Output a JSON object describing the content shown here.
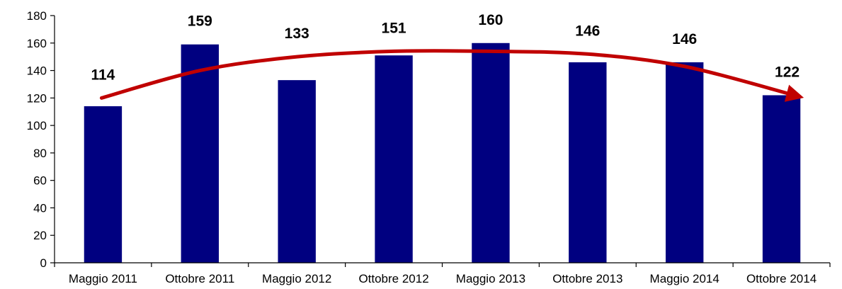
{
  "chart_data": {
    "type": "bar",
    "categories": [
      "Maggio 2011",
      "Ottobre 2011",
      "Maggio 2012",
      "Ottobre 2012",
      "Maggio 2013",
      "Ottobre 2013",
      "Maggio 2014",
      "Ottobre 2014"
    ],
    "values": [
      114,
      159,
      133,
      151,
      160,
      146,
      146,
      122
    ],
    "data_labels": [
      "114",
      "159",
      "133",
      "151",
      "160",
      "146",
      "146",
      "122"
    ],
    "yticks": [
      "0",
      "20",
      "40",
      "60",
      "80",
      "100",
      "120",
      "140",
      "160",
      "180"
    ],
    "ylim": [
      0,
      180
    ],
    "grid": false,
    "legend": "none",
    "colors": {
      "bar": "#000080",
      "trend_arrow": "#c00000",
      "axis": "#000000"
    },
    "annotation": {
      "type": "trend-arrow",
      "description_icon": "curved-arrow-icon",
      "y_values": [
        120,
        140,
        150,
        154,
        154,
        152,
        143,
        122
      ]
    }
  }
}
